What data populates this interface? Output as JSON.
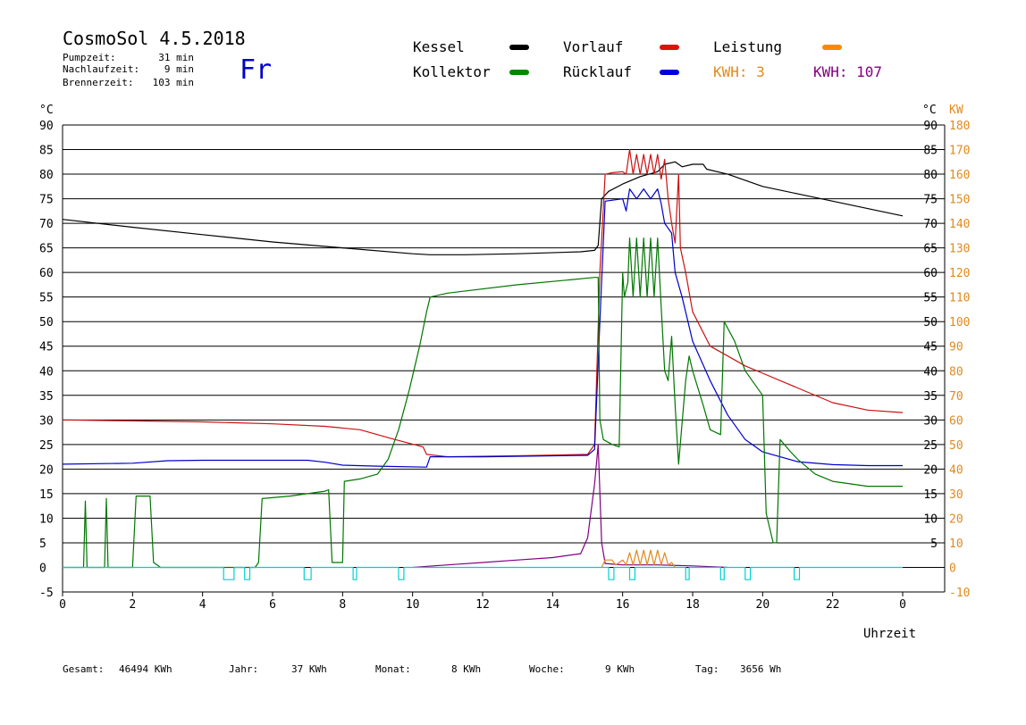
{
  "header": {
    "title": "CosmoSol 4.5.2018",
    "day": "Fr",
    "info": [
      {
        "label": "Pumpzeit:",
        "value": "31 min"
      },
      {
        "label": "Nachlaufzeit:",
        "value": "9 min"
      },
      {
        "label": "Brennerzeit:",
        "value": "103 min"
      }
    ]
  },
  "legend": [
    {
      "label": "Kessel",
      "color": "#000000"
    },
    {
      "label": "Vorlauf",
      "color": "#dd1111"
    },
    {
      "label": "Leistung",
      "color": "#ff8800"
    },
    {
      "label": "Kollektor",
      "color": "#008800"
    },
    {
      "label": "Rücklauf",
      "color": "#0000dd"
    },
    {
      "label": "KWH: 3",
      "color": "#e08a1e"
    },
    {
      "label": "KWH: 107",
      "color": "#800080"
    }
  ],
  "footer": {
    "stats": [
      {
        "label": "Gesamt:",
        "value": "46494 KWh"
      },
      {
        "label": "Jahr:",
        "value": "37 KWh"
      },
      {
        "label": "Monat:",
        "value": "8 KWh"
      },
      {
        "label": "Woche:",
        "value": "9 KWh"
      },
      {
        "label": "Tag:",
        "value": "3656 Wh"
      }
    ]
  },
  "chart_data": {
    "type": "line",
    "xlabel": "Uhrzeit",
    "ylabel_left": "°C",
    "ylabel_right_1": "°C",
    "ylabel_right_2": "KW",
    "xlim": [
      0,
      24
    ],
    "ylim": [
      -5,
      90
    ],
    "ylim_kw": [
      -10,
      180
    ],
    "x_ticks": [
      "0",
      "2",
      "4",
      "6",
      "8",
      "10",
      "12",
      "14",
      "16",
      "18",
      "20",
      "22",
      "0"
    ],
    "y_ticks_left": [
      "90",
      "85",
      "80",
      "75",
      "70",
      "65",
      "60",
      "55",
      "50",
      "45",
      "40",
      "35",
      "30",
      "25",
      "20",
      "15",
      "10",
      "5",
      "0",
      "-5"
    ],
    "y_ticks_right": [
      "90",
      "85",
      "80",
      "75",
      "70",
      "65",
      "60",
      "55",
      "50",
      "45",
      "40",
      "35",
      "30",
      "25",
      "20",
      "15",
      "10",
      "5"
    ],
    "y_ticks_kw": [
      "180",
      "170",
      "160",
      "150",
      "140",
      "130",
      "120",
      "110",
      "100",
      "90",
      "80",
      "70",
      "60",
      "50",
      "40",
      "30",
      "20",
      "10",
      "0",
      "-10"
    ],
    "grid": true,
    "series": [
      {
        "name": "Kessel",
        "color": "#000000",
        "points": [
          [
            0,
            70.8
          ],
          [
            2,
            69.2
          ],
          [
            4,
            67.7
          ],
          [
            6,
            66.2
          ],
          [
            8,
            65.0
          ],
          [
            10,
            63.8
          ],
          [
            10.5,
            63.6
          ],
          [
            11.5,
            63.6
          ],
          [
            13,
            63.8
          ],
          [
            14.8,
            64.2
          ],
          [
            15.2,
            64.5
          ],
          [
            15.3,
            65.5
          ],
          [
            15.4,
            75
          ],
          [
            15.6,
            76.5
          ],
          [
            16,
            78
          ],
          [
            16.5,
            79.5
          ],
          [
            17,
            80.5
          ],
          [
            17.2,
            82
          ],
          [
            17.5,
            82.5
          ],
          [
            17.7,
            81.5
          ],
          [
            18,
            82
          ],
          [
            18.3,
            82
          ],
          [
            18.4,
            81
          ],
          [
            19,
            80
          ],
          [
            20,
            77.5
          ],
          [
            21,
            76
          ],
          [
            22,
            74.5
          ],
          [
            23,
            73
          ],
          [
            24,
            71.5
          ]
        ]
      },
      {
        "name": "Vorlauf",
        "color": "#cc1111",
        "points": [
          [
            0,
            30
          ],
          [
            2,
            29.8
          ],
          [
            4,
            29.6
          ],
          [
            6,
            29.2
          ],
          [
            7.5,
            28.7
          ],
          [
            8.5,
            28
          ],
          [
            9.5,
            26
          ],
          [
            10.3,
            24.5
          ],
          [
            10.4,
            23
          ],
          [
            11,
            22.5
          ],
          [
            13,
            22.7
          ],
          [
            15,
            23
          ],
          [
            15.2,
            25
          ],
          [
            15.35,
            60
          ],
          [
            15.5,
            80
          ],
          [
            15.7,
            80.3
          ],
          [
            16,
            80.5
          ],
          [
            16.1,
            80
          ],
          [
            16.2,
            85
          ],
          [
            16.3,
            80
          ],
          [
            16.4,
            84
          ],
          [
            16.5,
            80
          ],
          [
            16.6,
            84
          ],
          [
            16.7,
            80
          ],
          [
            16.8,
            84
          ],
          [
            16.9,
            80
          ],
          [
            17,
            84
          ],
          [
            17.1,
            79
          ],
          [
            17.2,
            83
          ],
          [
            17.3,
            75
          ],
          [
            17.4,
            70
          ],
          [
            17.5,
            66
          ],
          [
            17.6,
            80
          ],
          [
            17.65,
            65
          ],
          [
            17.8,
            60
          ],
          [
            18,
            52
          ],
          [
            18.5,
            45
          ],
          [
            19,
            43
          ],
          [
            19.5,
            41
          ],
          [
            20,
            39.5
          ],
          [
            21,
            36.5
          ],
          [
            22,
            33.5
          ],
          [
            23,
            32
          ],
          [
            24,
            31.5
          ]
        ]
      },
      {
        "name": "Rücklauf",
        "color": "#0000cc",
        "points": [
          [
            0,
            21
          ],
          [
            2,
            21.2
          ],
          [
            3,
            21.7
          ],
          [
            4,
            21.8
          ],
          [
            6,
            21.8
          ],
          [
            7,
            21.8
          ],
          [
            7.5,
            21.4
          ],
          [
            8,
            20.8
          ],
          [
            9,
            20.6
          ],
          [
            10.4,
            20.4
          ],
          [
            10.5,
            22.5
          ],
          [
            12,
            22.5
          ],
          [
            15,
            22.8
          ],
          [
            15.2,
            24
          ],
          [
            15.35,
            50
          ],
          [
            15.5,
            74.5
          ],
          [
            16,
            75
          ],
          [
            16.1,
            72.5
          ],
          [
            16.2,
            77
          ],
          [
            16.4,
            75
          ],
          [
            16.6,
            77
          ],
          [
            16.8,
            75
          ],
          [
            17,
            77
          ],
          [
            17.1,
            74
          ],
          [
            17.2,
            70
          ],
          [
            17.4,
            68
          ],
          [
            17.5,
            60
          ],
          [
            17.7,
            55
          ],
          [
            18,
            46
          ],
          [
            18.5,
            38
          ],
          [
            19,
            31
          ],
          [
            19.5,
            26
          ],
          [
            20,
            23.5
          ],
          [
            21,
            21.5
          ],
          [
            22,
            20.9
          ],
          [
            23,
            20.7
          ],
          [
            24,
            20.7
          ]
        ]
      },
      {
        "name": "Kollektor",
        "color": "#007700",
        "points": [
          [
            0,
            0
          ],
          [
            0.6,
            0
          ],
          [
            0.65,
            13.5
          ],
          [
            0.7,
            0
          ],
          [
            1.2,
            0
          ],
          [
            1.25,
            14
          ],
          [
            1.3,
            0
          ],
          [
            2,
            0
          ],
          [
            2.1,
            14.5
          ],
          [
            2.5,
            14.5
          ],
          [
            2.6,
            1
          ],
          [
            2.8,
            0
          ],
          [
            5.5,
            0
          ],
          [
            5.6,
            1
          ],
          [
            5.7,
            14
          ],
          [
            6.5,
            14.5
          ],
          [
            7,
            15
          ],
          [
            7.5,
            15.5
          ],
          [
            7.6,
            15.8
          ],
          [
            7.7,
            1
          ],
          [
            8,
            1
          ],
          [
            8.05,
            17.5
          ],
          [
            8.5,
            18
          ],
          [
            9,
            19
          ],
          [
            9.3,
            22
          ],
          [
            9.6,
            28
          ],
          [
            9.9,
            36
          ],
          [
            10.2,
            45
          ],
          [
            10.4,
            52
          ],
          [
            10.5,
            55
          ],
          [
            11,
            55.8
          ],
          [
            13,
            57.5
          ],
          [
            14.5,
            58.5
          ],
          [
            15.2,
            59
          ],
          [
            15.3,
            59
          ],
          [
            15.35,
            30
          ],
          [
            15.45,
            26
          ],
          [
            15.7,
            25
          ],
          [
            15.9,
            24.5
          ],
          [
            16,
            60
          ],
          [
            16.05,
            55
          ],
          [
            16.15,
            58
          ],
          [
            16.2,
            67
          ],
          [
            16.3,
            55
          ],
          [
            16.4,
            67
          ],
          [
            16.5,
            55
          ],
          [
            16.6,
            67
          ],
          [
            16.7,
            55
          ],
          [
            16.8,
            67
          ],
          [
            16.9,
            55
          ],
          [
            17,
            67
          ],
          [
            17.1,
            53
          ],
          [
            17.2,
            40
          ],
          [
            17.3,
            38
          ],
          [
            17.4,
            47
          ],
          [
            17.5,
            33
          ],
          [
            17.6,
            21
          ],
          [
            17.8,
            38
          ],
          [
            17.9,
            43
          ],
          [
            18,
            40
          ],
          [
            18.3,
            33
          ],
          [
            18.5,
            28
          ],
          [
            18.8,
            27
          ],
          [
            18.9,
            50
          ],
          [
            19.2,
            46
          ],
          [
            19.5,
            40
          ],
          [
            20,
            35
          ],
          [
            20.1,
            11
          ],
          [
            20.3,
            5
          ],
          [
            20.4,
            5
          ],
          [
            20.5,
            26
          ],
          [
            20.8,
            23.5
          ],
          [
            21,
            22
          ],
          [
            21.5,
            19
          ],
          [
            22,
            17.5
          ],
          [
            23,
            16.5
          ],
          [
            24,
            16.5
          ]
        ]
      },
      {
        "name": "KWH: 107",
        "color": "#800080",
        "points": [
          [
            10,
            0
          ],
          [
            11,
            0.5
          ],
          [
            12,
            1
          ],
          [
            13,
            1.5
          ],
          [
            14,
            2
          ],
          [
            14.8,
            2.8
          ],
          [
            15,
            6
          ],
          [
            15.2,
            17
          ],
          [
            15.3,
            25
          ],
          [
            15.4,
            5
          ],
          [
            15.5,
            0.8
          ],
          [
            16,
            0.5
          ],
          [
            17,
            0.5
          ],
          [
            18,
            0.3
          ],
          [
            19,
            0
          ]
        ]
      },
      {
        "name": "KWH: 3",
        "color": "#e08a1e",
        "points": [
          [
            15.4,
            0
          ],
          [
            15.5,
            1.5
          ],
          [
            15.7,
            1.5
          ],
          [
            15.8,
            0.5
          ],
          [
            16,
            1.5
          ],
          [
            16.1,
            0.5
          ],
          [
            16.2,
            3
          ],
          [
            16.3,
            0.5
          ],
          [
            16.4,
            3.5
          ],
          [
            16.5,
            0.5
          ],
          [
            16.6,
            3.5
          ],
          [
            16.7,
            0.5
          ],
          [
            16.8,
            3.5
          ],
          [
            16.9,
            0.5
          ],
          [
            17,
            3.5
          ],
          [
            17.1,
            0.5
          ],
          [
            17.2,
            3
          ],
          [
            17.3,
            0.5
          ],
          [
            17.4,
            1
          ],
          [
            17.5,
            0
          ]
        ]
      },
      {
        "name": "Pumpe",
        "color": "#00d0d0",
        "points": [
          [
            0,
            0
          ],
          [
            4.6,
            0
          ],
          [
            4.6,
            -2.5
          ],
          [
            4.9,
            -2.5
          ],
          [
            4.9,
            0
          ],
          [
            5.2,
            0
          ],
          [
            5.2,
            -2.5
          ],
          [
            5.35,
            -2.5
          ],
          [
            5.35,
            0
          ],
          [
            6.9,
            0
          ],
          [
            6.9,
            -2.5
          ],
          [
            7.1,
            -2.5
          ],
          [
            7.1,
            0
          ],
          [
            8.3,
            0
          ],
          [
            8.3,
            -2.5
          ],
          [
            8.4,
            -2.5
          ],
          [
            8.4,
            0
          ],
          [
            9.6,
            0
          ],
          [
            9.6,
            -2.5
          ],
          [
            9.75,
            -2.5
          ],
          [
            9.75,
            0
          ],
          [
            15.6,
            0
          ],
          [
            15.6,
            -2.5
          ],
          [
            15.75,
            -2.5
          ],
          [
            15.75,
            0
          ],
          [
            16.2,
            0
          ],
          [
            16.2,
            -2.5
          ],
          [
            16.35,
            -2.5
          ],
          [
            16.35,
            0
          ],
          [
            17.8,
            0
          ],
          [
            17.8,
            -2.5
          ],
          [
            17.9,
            -2.5
          ],
          [
            17.9,
            0
          ],
          [
            18.8,
            0
          ],
          [
            18.8,
            -2.5
          ],
          [
            18.9,
            -2.5
          ],
          [
            18.9,
            0
          ],
          [
            19.5,
            0
          ],
          [
            19.5,
            -2.5
          ],
          [
            19.65,
            -2.5
          ],
          [
            19.65,
            0
          ],
          [
            20.9,
            0
          ],
          [
            20.9,
            -2.5
          ],
          [
            21.05,
            -2.5
          ],
          [
            21.05,
            0
          ],
          [
            24,
            0
          ]
        ]
      }
    ]
  }
}
